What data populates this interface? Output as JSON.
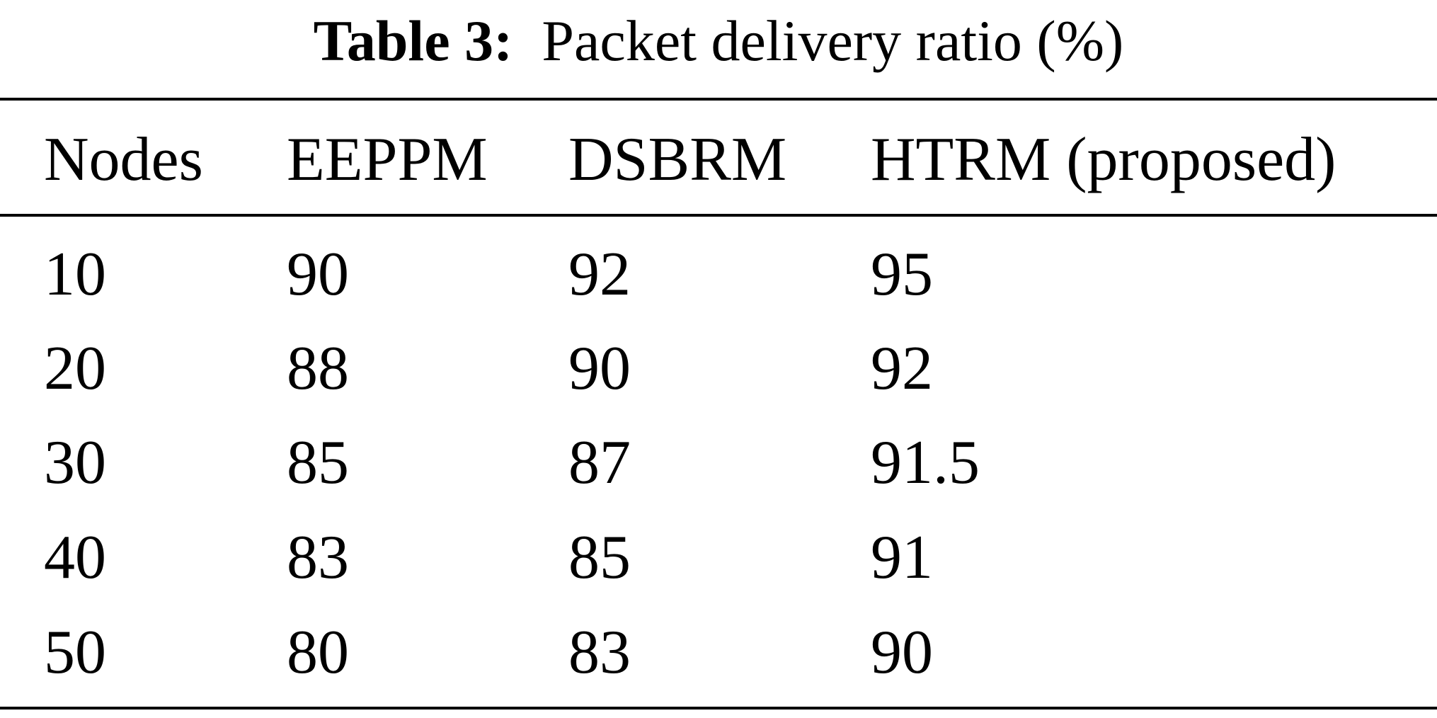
{
  "table": {
    "label": "Table 3:",
    "caption": "Packet delivery ratio (%)",
    "headers": [
      "Nodes",
      "EEPPM",
      "DSBRM",
      "HTRM (proposed)"
    ],
    "rows": [
      [
        "10",
        "90",
        "92",
        "95"
      ],
      [
        "20",
        "88",
        "90",
        "92"
      ],
      [
        "30",
        "85",
        "87",
        "91.5"
      ],
      [
        "40",
        "83",
        "85",
        "91"
      ],
      [
        "50",
        "80",
        "83",
        "90"
      ]
    ]
  }
}
